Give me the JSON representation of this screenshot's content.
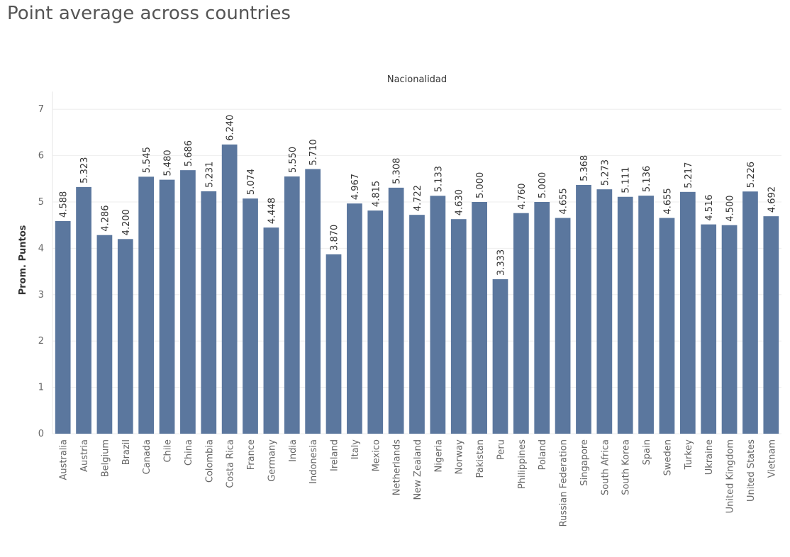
{
  "title": "Point average across countries",
  "chart_data": {
    "type": "bar",
    "title": "Point average across countries",
    "column_header": "Nacionalidad",
    "ylabel": "Prom. Puntos",
    "ylim": [
      0,
      7
    ],
    "yticks": [
      0,
      1,
      2,
      3,
      4,
      5,
      6,
      7
    ],
    "grid": true,
    "bar_color": "#5b779e",
    "categories": [
      "Australia",
      "Austria",
      "Belgium",
      "Brazil",
      "Canada",
      "Chile",
      "China",
      "Colombia",
      "Costa Rica",
      "France",
      "Germany",
      "India",
      "Indonesia",
      "Ireland",
      "Italy",
      "Mexico",
      "Netherlands",
      "New Zealand",
      "Nigeria",
      "Norway",
      "Pakistan",
      "Peru",
      "Philippines",
      "Poland",
      "Russian Federation",
      "Singapore",
      "South Africa",
      "South Korea",
      "Spain",
      "Sweden",
      "Turkey",
      "Ukraine",
      "United Kingdom",
      "United States",
      "Vietnam"
    ],
    "values": [
      4.588,
      5.323,
      4.286,
      4.2,
      5.545,
      5.48,
      5.686,
      5.231,
      6.24,
      5.074,
      4.448,
      5.55,
      5.71,
      3.87,
      4.967,
      4.815,
      5.308,
      4.722,
      5.133,
      4.63,
      5.0,
      3.333,
      4.76,
      5.0,
      4.655,
      5.368,
      5.273,
      5.111,
      5.136,
      4.655,
      5.217,
      4.516,
      4.5,
      5.226,
      4.692
    ],
    "labels": [
      "4.588",
      "5.323",
      "4.286",
      "4.200",
      "5.545",
      "5.480",
      "5.686",
      "5.231",
      "6.240",
      "5.074",
      "4.448",
      "5.550",
      "5.710",
      "3.870",
      "4.967",
      "4.815",
      "5.308",
      "4.722",
      "5.133",
      "4.630",
      "5.000",
      "3.333",
      "4.760",
      "5.000",
      "4.655",
      "5.368",
      "5.273",
      "5.111",
      "5.136",
      "4.655",
      "5.217",
      "4.516",
      "4.500",
      "5.226",
      "4.692"
    ]
  }
}
